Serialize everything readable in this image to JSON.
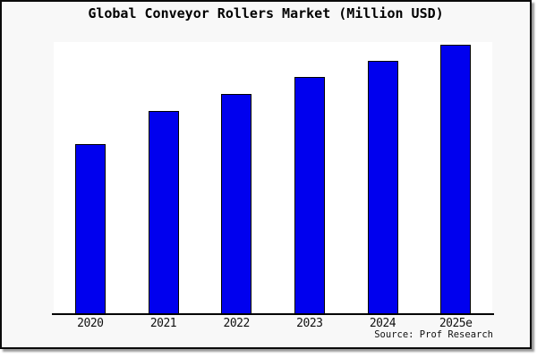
{
  "chart_data": {
    "type": "bar",
    "title": "Global Conveyor Rollers Market (Million USD)",
    "categories": [
      "2020",
      "2021",
      "2022",
      "2023",
      "2024",
      "2025e"
    ],
    "values": [
      63,
      75.3,
      81.7,
      88,
      94,
      100
    ],
    "values_note": "relative index estimated from bar heights; chart displays no y-axis tick values (2025e bar = 100)",
    "ylim": [
      0,
      101
    ],
    "xlabel": "",
    "ylabel": "",
    "y_axis_visible": false,
    "gridlines": false,
    "legend_visible": false,
    "source": "Source: Prof Research",
    "colors": {
      "bar_fill": "#0000ee",
      "bar_edge": "#000000",
      "plot_background": "#ffffff",
      "canvas_background": "#f8f8f8",
      "frame_border": "#000000",
      "frame_shadow": "#9a9a9a",
      "text": "#000000"
    }
  }
}
